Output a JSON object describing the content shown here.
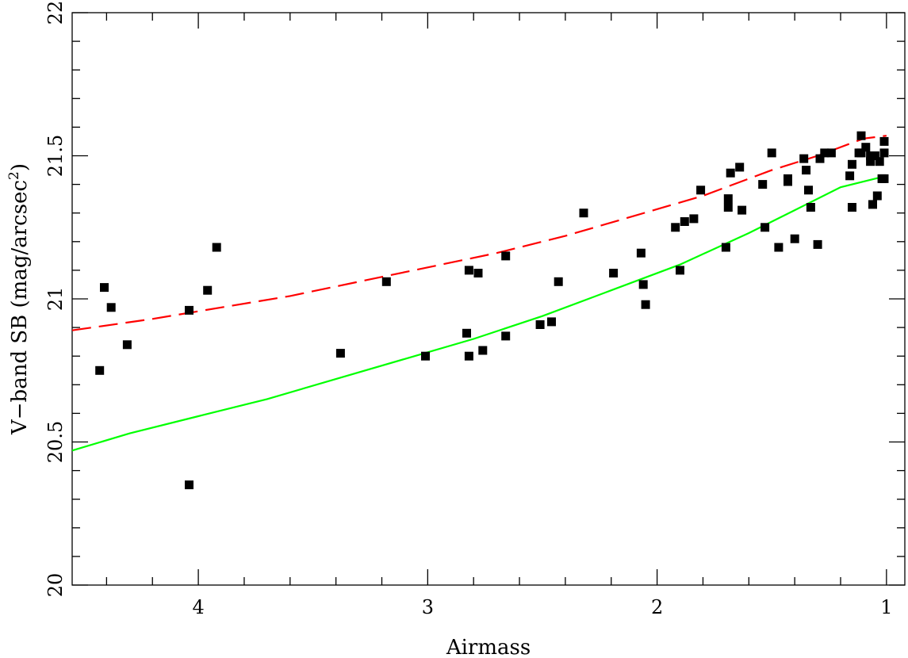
{
  "chart_data": {
    "type": "scatter",
    "xlabel": "Airmass",
    "ylabel_main": "V−band SB (mag/arcsec",
    "ylabel_sup": "2",
    "ylabel_close": ")",
    "xlim": [
      4.55,
      0.92
    ],
    "ylim": [
      20.0,
      22.0
    ],
    "x_major_ticks": [
      4,
      3,
      2,
      1
    ],
    "x_tick_labels": [
      "4",
      "3",
      "2",
      "1"
    ],
    "y_major_ticks": [
      20,
      20.5,
      21,
      21.5,
      22
    ],
    "y_tick_labels": [
      "20",
      "20.5",
      "21",
      "21.5",
      "22"
    ],
    "grid": false,
    "colors": {
      "dashed_curve": "#ff0000",
      "solid_curve": "#00ff00",
      "points": "#000000"
    },
    "series": [
      {
        "type": "scatter",
        "x": [
          4.43,
          4.41,
          4.38,
          4.31,
          4.04,
          4.04,
          3.96,
          3.92,
          3.38,
          3.18,
          3.01,
          2.83,
          2.82,
          2.82,
          2.78,
          2.76,
          2.66,
          2.66,
          2.51,
          2.46,
          2.43,
          2.32,
          2.19,
          2.07,
          2.06,
          2.05,
          1.92,
          1.9,
          1.88,
          1.84,
          1.81,
          1.7,
          1.69,
          1.69,
          1.68,
          1.64,
          1.63,
          1.54,
          1.53,
          1.5,
          1.47,
          1.43,
          1.43,
          1.4,
          1.36,
          1.35,
          1.34,
          1.33,
          1.3,
          1.29,
          1.27,
          1.24,
          1.16,
          1.15,
          1.15,
          1.12,
          1.11,
          1.11,
          1.09,
          1.07,
          1.07,
          1.06,
          1.05,
          1.04,
          1.03,
          1.02,
          1.01,
          1.01,
          1.01
        ],
        "y": [
          20.75,
          21.04,
          20.97,
          20.84,
          20.35,
          20.96,
          21.03,
          21.18,
          20.81,
          21.06,
          20.8,
          20.88,
          20.8,
          21.1,
          21.09,
          20.82,
          21.15,
          20.87,
          20.91,
          20.92,
          21.06,
          21.3,
          21.09,
          21.16,
          21.05,
          20.98,
          21.25,
          21.1,
          21.27,
          21.28,
          21.38,
          21.18,
          21.32,
          21.35,
          21.44,
          21.46,
          21.31,
          21.4,
          21.25,
          21.51,
          21.18,
          21.41,
          21.42,
          21.21,
          21.49,
          21.45,
          21.38,
          21.32,
          21.19,
          21.49,
          21.51,
          21.51,
          21.43,
          21.32,
          21.47,
          21.51,
          21.57,
          21.51,
          21.53,
          21.48,
          21.5,
          21.33,
          21.5,
          21.36,
          21.48,
          21.42,
          21.55,
          21.51,
          21.42
        ]
      },
      {
        "type": "line",
        "style": "dashed",
        "x": [
          4.55,
          4.2,
          3.9,
          3.6,
          3.3,
          3.0,
          2.7,
          2.4,
          2.1,
          1.8,
          1.5,
          1.3,
          1.1,
          1.0
        ],
        "y": [
          20.89,
          20.93,
          20.97,
          21.01,
          21.06,
          21.11,
          21.16,
          21.22,
          21.29,
          21.36,
          21.45,
          21.5,
          21.56,
          21.57
        ]
      },
      {
        "type": "line",
        "style": "solid",
        "x": [
          4.55,
          4.3,
          4.0,
          3.7,
          3.4,
          3.1,
          2.8,
          2.5,
          2.2,
          1.9,
          1.6,
          1.4,
          1.2,
          1.0
        ],
        "y": [
          20.47,
          20.53,
          20.59,
          20.65,
          20.72,
          20.79,
          20.86,
          20.94,
          21.03,
          21.12,
          21.23,
          21.31,
          21.39,
          21.43
        ]
      }
    ]
  }
}
